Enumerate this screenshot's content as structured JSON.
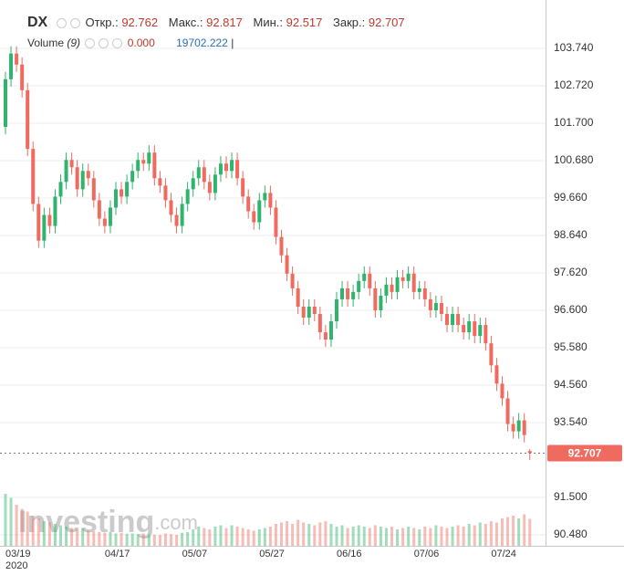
{
  "chart_data": {
    "type": "candlestick",
    "header": {
      "symbol": "DX",
      "open_label": "Откр.:",
      "open": 92.762,
      "high_label": "Макс.:",
      "high": 92.817,
      "low_label": "Мин.:",
      "low": 92.517,
      "close_label": "Закр.:",
      "close": 92.707,
      "volume_label": "Volume",
      "volume_period": "(9)",
      "volume_zero": "0.000",
      "cursor": "|"
    },
    "watermark": [
      "Investing",
      ".com"
    ],
    "year_label": "2020",
    "categories": [
      "03/19",
      null,
      null,
      null,
      null,
      null,
      null,
      null,
      null,
      null,
      null,
      null,
      null,
      null,
      null,
      null,
      null,
      null,
      "04/17",
      null,
      null,
      null,
      null,
      null,
      null,
      null,
      null,
      null,
      null,
      null,
      null,
      null,
      "05/07",
      null,
      null,
      null,
      null,
      null,
      null,
      null,
      null,
      null,
      null,
      null,
      null,
      null,
      "05/27",
      null,
      null,
      null,
      null,
      null,
      null,
      null,
      null,
      null,
      null,
      null,
      null,
      null,
      "06/16",
      null,
      null,
      null,
      null,
      null,
      null,
      null,
      null,
      null,
      null,
      null,
      null,
      null,
      "07/06",
      null,
      null,
      null,
      null,
      null,
      null,
      null,
      null,
      null,
      null,
      null,
      null,
      null,
      "07/24",
      null,
      null,
      null,
      null,
      null,
      null,
      null
    ],
    "open": [
      101.6,
      102.9,
      103.6,
      103.3,
      102.6,
      101.0,
      99.5,
      98.5,
      99.2,
      98.9,
      99.7,
      100.1,
      100.7,
      100.5,
      99.9,
      100.4,
      100.2,
      99.6,
      99.1,
      98.9,
      99.4,
      99.9,
      99.7,
      100.1,
      100.4,
      100.7,
      100.6,
      100.9,
      100.2,
      100.0,
      99.6,
      99.2,
      98.9,
      99.5,
      99.9,
      100.2,
      100.5,
      100.1,
      99.8,
      100.3,
      100.6,
      100.4,
      100.7,
      100.2,
      99.7,
      99.3,
      99.0,
      99.6,
      99.8,
      99.4,
      98.6,
      98.1,
      97.6,
      97.2,
      96.7,
      96.4,
      96.7,
      96.5,
      96.0,
      95.8,
      96.3,
      96.9,
      97.2,
      96.9,
      97.1,
      97.4,
      97.6,
      97.2,
      96.6,
      97.0,
      97.3,
      97.1,
      97.5,
      97.4,
      97.6,
      97.1,
      97.2,
      96.9,
      96.6,
      96.8,
      96.5,
      96.2,
      96.5,
      96.2,
      96.0,
      96.3,
      95.9,
      96.2,
      95.7,
      95.1,
      94.6,
      94.2,
      93.5,
      93.3,
      93.6,
      92.762
    ],
    "high": [
      103.1,
      103.8,
      103.8,
      103.5,
      102.8,
      101.2,
      99.7,
      99.4,
      99.4,
      99.9,
      100.3,
      100.9,
      100.9,
      100.7,
      100.6,
      100.6,
      100.4,
      99.8,
      99.3,
      99.6,
      100.1,
      100.1,
      100.3,
      100.6,
      100.9,
      100.9,
      101.1,
      101.1,
      100.4,
      100.2,
      99.8,
      99.4,
      99.7,
      100.1,
      100.4,
      100.7,
      100.7,
      100.3,
      100.5,
      100.8,
      100.8,
      100.9,
      100.9,
      100.4,
      99.9,
      99.5,
      99.8,
      100.0,
      100.0,
      99.6,
      98.8,
      98.3,
      97.8,
      97.4,
      96.9,
      96.9,
      96.9,
      96.7,
      96.2,
      96.5,
      97.1,
      97.4,
      97.4,
      97.3,
      97.6,
      97.8,
      97.8,
      97.4,
      97.2,
      97.5,
      97.5,
      97.7,
      97.7,
      97.8,
      97.8,
      97.4,
      97.4,
      97.1,
      97.0,
      97.0,
      96.7,
      96.7,
      96.7,
      96.4,
      96.5,
      96.5,
      96.4,
      96.4,
      95.9,
      95.3,
      94.8,
      94.4,
      93.7,
      93.8,
      93.8,
      92.817
    ],
    "low": [
      101.4,
      102.7,
      103.1,
      102.4,
      100.8,
      99.3,
      98.3,
      98.3,
      98.7,
      98.7,
      99.5,
      99.9,
      100.3,
      99.7,
      99.7,
      100.0,
      99.4,
      98.9,
      98.7,
      98.7,
      99.2,
      99.5,
      99.5,
      99.9,
      100.2,
      100.4,
      100.4,
      100.0,
      99.8,
      99.4,
      99.0,
      98.7,
      98.7,
      99.3,
      99.7,
      100.0,
      99.9,
      99.6,
      99.6,
      100.1,
      100.2,
      100.2,
      100.0,
      99.5,
      99.1,
      98.8,
      98.8,
      99.4,
      99.2,
      98.4,
      97.9,
      97.4,
      97.0,
      96.5,
      96.2,
      96.2,
      96.3,
      95.8,
      95.6,
      95.6,
      96.1,
      96.7,
      96.7,
      96.7,
      96.9,
      97.2,
      97.0,
      96.4,
      96.4,
      96.8,
      96.9,
      96.9,
      97.2,
      97.2,
      96.9,
      96.9,
      96.7,
      96.4,
      96.4,
      96.3,
      96.0,
      96.0,
      96.0,
      95.8,
      95.8,
      95.7,
      95.7,
      95.5,
      94.9,
      94.4,
      94.0,
      93.3,
      93.1,
      93.1,
      93.0,
      92.517
    ],
    "close": [
      102.9,
      103.6,
      103.3,
      102.6,
      101.0,
      99.5,
      98.5,
      99.2,
      98.9,
      99.7,
      100.1,
      100.7,
      100.5,
      99.9,
      100.4,
      100.2,
      99.6,
      99.1,
      98.9,
      99.4,
      99.9,
      99.7,
      100.1,
      100.4,
      100.7,
      100.6,
      100.9,
      100.2,
      100.0,
      99.6,
      99.2,
      98.9,
      99.5,
      99.9,
      100.2,
      100.5,
      100.1,
      99.8,
      100.3,
      100.6,
      100.4,
      100.7,
      100.2,
      99.7,
      99.3,
      99.0,
      99.6,
      99.8,
      99.4,
      98.6,
      98.1,
      97.6,
      97.2,
      96.7,
      96.4,
      96.7,
      96.5,
      96.0,
      95.8,
      96.3,
      96.9,
      97.2,
      96.9,
      97.1,
      97.4,
      97.6,
      97.2,
      96.6,
      97.0,
      97.3,
      97.1,
      97.5,
      97.4,
      97.6,
      97.1,
      97.2,
      96.9,
      96.6,
      96.8,
      96.5,
      96.2,
      96.5,
      96.2,
      96.0,
      96.3,
      95.9,
      96.2,
      95.7,
      95.1,
      94.6,
      94.2,
      93.5,
      93.3,
      93.6,
      93.2,
      92.707
    ],
    "volume": [
      38000,
      35000,
      30000,
      27000,
      25000,
      22000,
      20000,
      18000,
      17000,
      16000,
      15000,
      14000,
      13000,
      12000,
      12500,
      11000,
      10500,
      10000,
      9500,
      10000,
      9000,
      9500,
      8800,
      9000,
      8500,
      9000,
      8700,
      8200,
      8000,
      9000,
      8500,
      8000,
      9500,
      10000,
      12000,
      14000,
      13000,
      12000,
      14000,
      15000,
      13000,
      15000,
      14000,
      13000,
      12000,
      11000,
      12000,
      13000,
      14000,
      16000,
      17000,
      18000,
      16000,
      19000,
      17000,
      16000,
      15000,
      17000,
      18000,
      16000,
      14000,
      15000,
      13000,
      14000,
      15000,
      14000,
      13000,
      15000,
      14000,
      13000,
      14000,
      12000,
      13000,
      14000,
      13000,
      12000,
      14000,
      13000,
      15000,
      14000,
      13000,
      14000,
      15000,
      14000,
      16000,
      15000,
      17000,
      16000,
      18000,
      17000,
      20000,
      21000,
      22000,
      20000,
      23000,
      19702.222
    ],
    "vlim": [
      0,
      40000
    ],
    "up_color": "#2fb36d",
    "down_color": "#ef6a5f",
    "ylim": [
      90.18,
      105.06
    ],
    "yticks": [
      {
        "value": 103.74,
        "label": "103.740"
      },
      {
        "value": 102.72,
        "label": "102.720"
      },
      {
        "value": 101.7,
        "label": "101.700"
      },
      {
        "value": 100.68,
        "label": "100.680"
      },
      {
        "value": 99.66,
        "label": "99.660"
      },
      {
        "value": 98.64,
        "label": "98.640"
      },
      {
        "value": 97.62,
        "label": "97.620"
      },
      {
        "value": 96.6,
        "label": "96.600"
      },
      {
        "value": 95.58,
        "label": "95.580"
      },
      {
        "value": 94.56,
        "label": "94.560"
      },
      {
        "value": 93.54,
        "label": "93.540"
      },
      {
        "value": 91.5,
        "label": "91.500"
      },
      {
        "value": 90.48,
        "label": "90.480"
      }
    ],
    "grid": true
  }
}
